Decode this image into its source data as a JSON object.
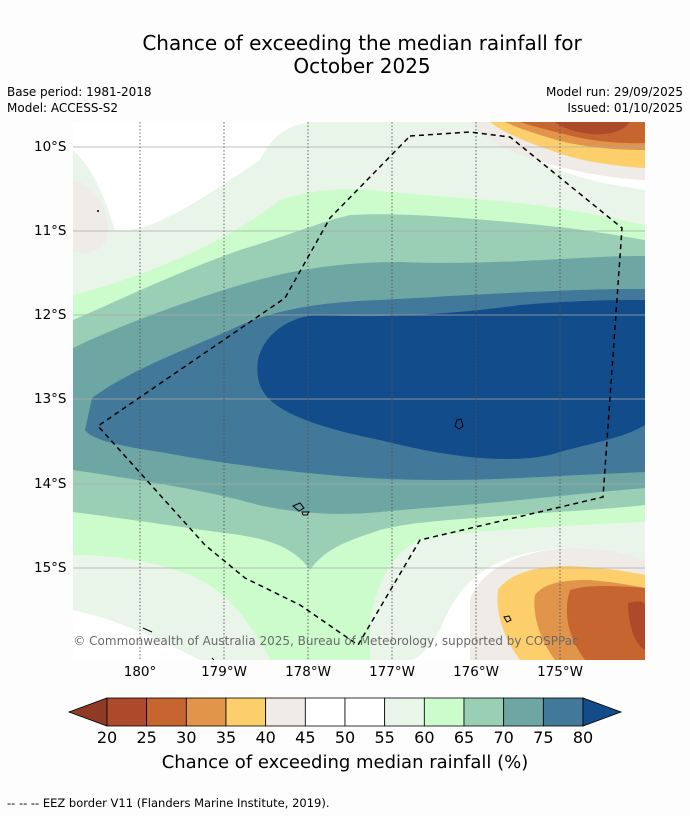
{
  "title_line1": "Chance of exceeding the median rainfall for",
  "title_line2": "October 2025",
  "base_period": "Base period: 1981-2018",
  "model": "Model: ACCESS-S2",
  "model_run": "Model run: 29/09/2025",
  "issued": "Issued: 01/10/2025",
  "latitudes": [
    "10°S",
    "11°S",
    "12°S",
    "13°S",
    "14°S",
    "15°S"
  ],
  "longitudes": [
    "180°",
    "179°W",
    "178°W",
    "177°W",
    "176°W",
    "175°W"
  ],
  "copyright": "© Commonwealth of Australia 2025, Bureau of Meteorology, supported by COSPPac",
  "colorbar": {
    "ticks": [
      "20",
      "25",
      "30",
      "35",
      "40",
      "45",
      "50",
      "55",
      "60",
      "65",
      "70",
      "75",
      "80"
    ],
    "colors": [
      "#8f3a24",
      "#ad4a2a",
      "#c76531",
      "#e0954a",
      "#fdcf6c",
      "#efebe6",
      "#ffffff",
      "#ffffff",
      "#eaf5ea",
      "#ccfccc",
      "#9acfb6",
      "#6ea6a4",
      "#427899",
      "#134c8a"
    ],
    "label": "Chance of exceeding median rainfall (%)"
  },
  "legend_footer": "--  --  -- EEZ border V11 (Flanders Marine Institute, 2019)."
}
